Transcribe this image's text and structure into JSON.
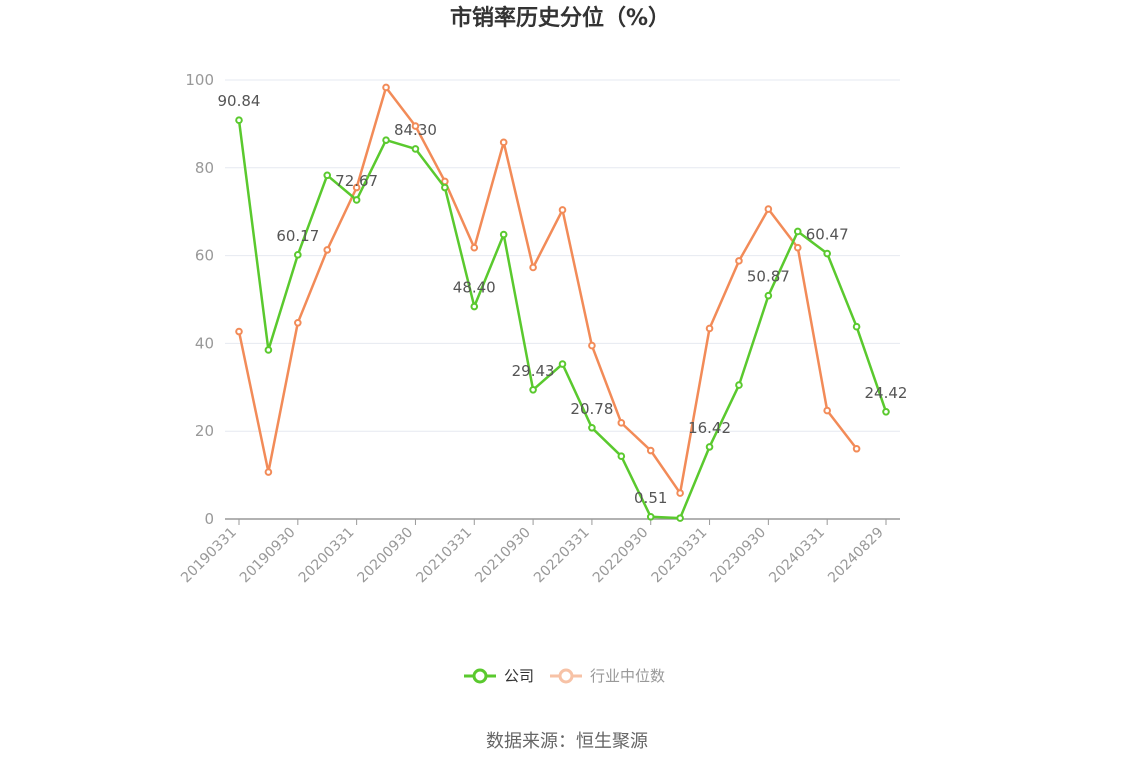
{
  "chart_data": {
    "type": "line",
    "title": "市销率历史分位（%）",
    "ylim": [
      0,
      100
    ],
    "y_ticks": [
      0,
      20,
      40,
      60,
      80,
      100
    ],
    "x_tick_labels": [
      "20190331",
      "20190930",
      "20200331",
      "20200930",
      "20210331",
      "20210930",
      "20220331",
      "20220930",
      "20230331",
      "20230930",
      "20240331",
      "20240829"
    ],
    "grid": true,
    "legend_position": "bottom",
    "x": [
      "20190331",
      "20190630",
      "20190930",
      "20191231",
      "20200331",
      "20200630",
      "20200930",
      "20201231",
      "20210331",
      "20210630",
      "20210930",
      "20211231",
      "20220331",
      "20220630",
      "20220930",
      "20221231",
      "20230331",
      "20230630",
      "20230930",
      "20231231",
      "20240331",
      "20240630",
      "20240829"
    ],
    "series": [
      {
        "name": "公司",
        "color": "#5ac92e",
        "values": [
          90.84,
          38.5,
          60.17,
          78.3,
          72.67,
          86.3,
          84.3,
          75.5,
          48.4,
          64.8,
          29.43,
          35.3,
          20.78,
          14.3,
          0.51,
          0.2,
          16.42,
          30.5,
          50.87,
          65.5,
          60.47,
          43.8,
          24.42
        ],
        "labels": [
          "90.84",
          null,
          "60.17",
          null,
          "72.67",
          null,
          "84.30",
          null,
          "48.40",
          null,
          "29.43",
          null,
          "20.78",
          null,
          "0.51",
          null,
          "16.42",
          null,
          "50.87",
          null,
          "60.47",
          null,
          "24.42"
        ]
      },
      {
        "name": "行业中位数",
        "color": "#f28b58",
        "values": [
          42.7,
          10.7,
          44.7,
          61.3,
          75.5,
          98.3,
          89.5,
          76.9,
          61.8,
          85.8,
          57.3,
          70.4,
          39.5,
          21.9,
          15.6,
          5.9,
          43.4,
          58.8,
          70.6,
          61.8,
          24.7,
          16.0,
          null
        ]
      }
    ]
  },
  "legend": {
    "company_label": "公司",
    "industry_label": "行业中位数"
  },
  "source": "数据来源：恒生聚源"
}
